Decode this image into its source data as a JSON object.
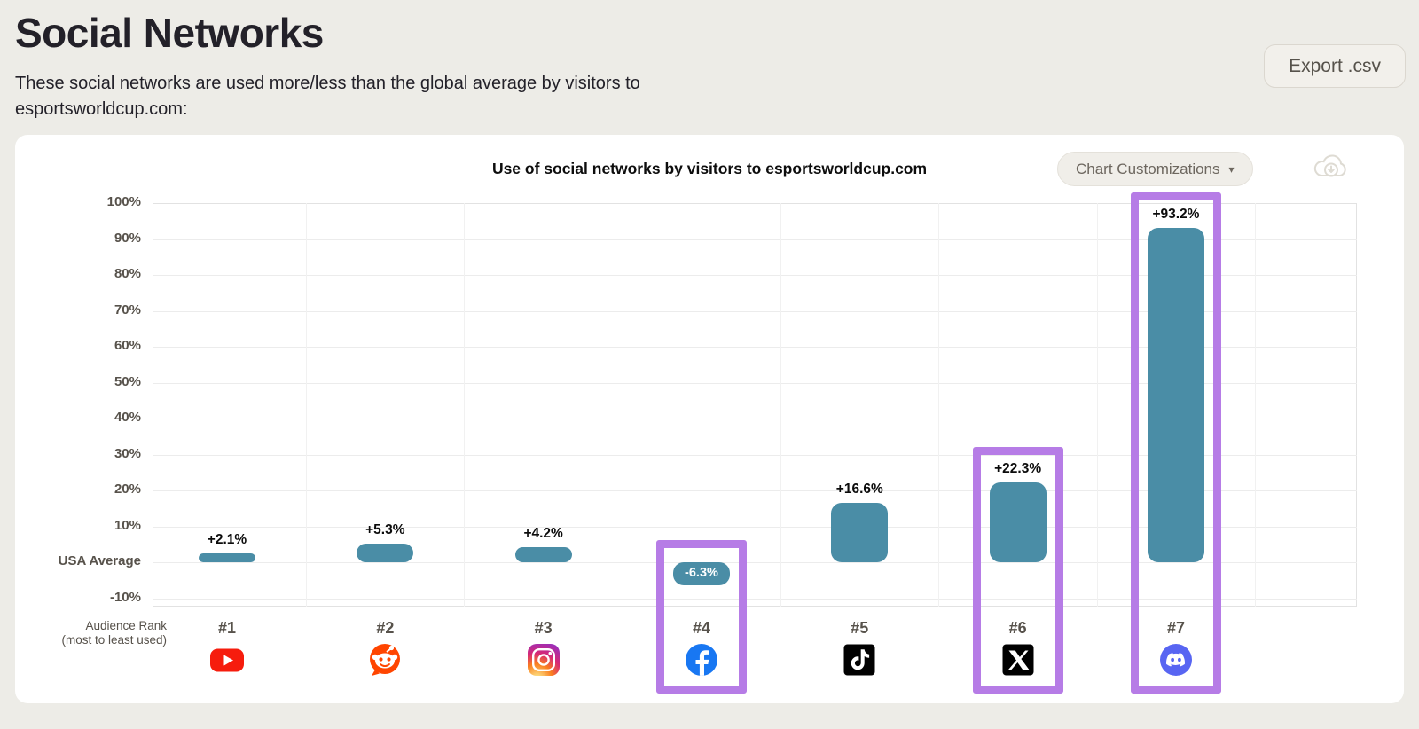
{
  "page": {
    "title": "Social Networks",
    "subtitle": "These social networks are used more/less than the global average by visitors to esportsworldcup.com:",
    "export_button": "Export .csv"
  },
  "chart_header": {
    "customizations_button": "Chart Customizations",
    "caret_icon": "▾",
    "download_icon": "cloud-download-icon"
  },
  "chart_data": {
    "type": "bar",
    "title": "Use of social networks by visitors to esportsworldcup.com",
    "ylabel_unit": "%",
    "ylim": [
      -10,
      100
    ],
    "ytick_values": [
      100,
      90,
      80,
      70,
      60,
      50,
      40,
      30,
      20,
      10,
      0,
      -10
    ],
    "ytick_labels": [
      "100%",
      "90%",
      "80%",
      "70%",
      "60%",
      "50%",
      "40%",
      "30%",
      "20%",
      "10%",
      "USA Average",
      "-10%"
    ],
    "baseline_label": "USA Average",
    "xlabel_line1": "Audience Rank",
    "xlabel_line2": "(most to least used)",
    "grid": true,
    "bar_color": "#4a8da6",
    "highlight_color": "#b67ce6",
    "categories": [
      {
        "rank": "#1",
        "network": "YouTube",
        "icon": "youtube-icon",
        "value": 2.1,
        "label": "+2.1%",
        "highlighted": false
      },
      {
        "rank": "#2",
        "network": "Reddit",
        "icon": "reddit-icon",
        "value": 5.3,
        "label": "+5.3%",
        "highlighted": false
      },
      {
        "rank": "#3",
        "network": "Instagram",
        "icon": "instagram-icon",
        "value": 4.2,
        "label": "+4.2%",
        "highlighted": false
      },
      {
        "rank": "#4",
        "network": "Facebook",
        "icon": "facebook-icon",
        "value": -6.3,
        "label": "-6.3%",
        "highlighted": true
      },
      {
        "rank": "#5",
        "network": "TikTok",
        "icon": "tiktok-icon",
        "value": 16.6,
        "label": "+16.6%",
        "highlighted": false
      },
      {
        "rank": "#6",
        "network": "X",
        "icon": "x-icon",
        "value": 22.3,
        "label": "+22.3%",
        "highlighted": true
      },
      {
        "rank": "#7",
        "network": "Discord",
        "icon": "discord-icon",
        "value": 93.2,
        "label": "+93.2%",
        "highlighted": true
      }
    ]
  }
}
